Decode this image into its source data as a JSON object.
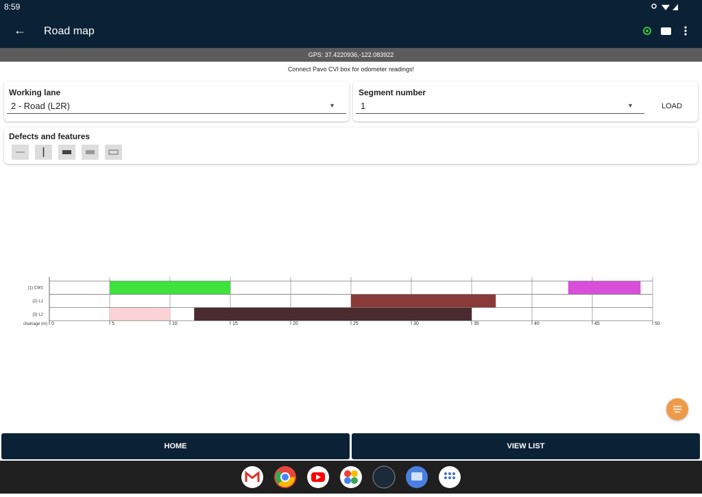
{
  "status_bar": {
    "time": "8:59"
  },
  "app_bar": {
    "title": "Road map"
  },
  "gps": "GPS: 37.4220936,-122.083922",
  "notice": "Connect Pavo CVI box for odometer readings!",
  "working_lane": {
    "label": "Working lane",
    "value": "2 - Road (L2R)"
  },
  "segment": {
    "label": "Segment number",
    "value": "1",
    "button": "LOAD"
  },
  "defects": {
    "label": "Defects and features"
  },
  "chart_data": {
    "type": "range-bar",
    "categories": [
      "(1) CW1",
      "(2) L1",
      "(3) L2"
    ],
    "x_label": "chainage (m)",
    "xlim": [
      0,
      50
    ],
    "xticks": [
      0,
      5,
      10,
      15,
      20,
      25,
      30,
      35,
      40,
      45,
      50
    ],
    "grid": true,
    "bars": [
      {
        "row": 0,
        "start": 5,
        "end": 15,
        "color": "#3de23d"
      },
      {
        "row": 0,
        "start": 43,
        "end": 49,
        "color": "#d94fd9"
      },
      {
        "row": 1,
        "start": 25,
        "end": 37,
        "color": "#8b3a3a"
      },
      {
        "row": 2,
        "start": 5,
        "end": 10,
        "color": "#fbd3d6"
      },
      {
        "row": 2,
        "start": 12,
        "end": 35,
        "color": "#4a2c30"
      }
    ]
  },
  "buttons": {
    "home": "HOME",
    "view_list": "VIEW LIST"
  }
}
